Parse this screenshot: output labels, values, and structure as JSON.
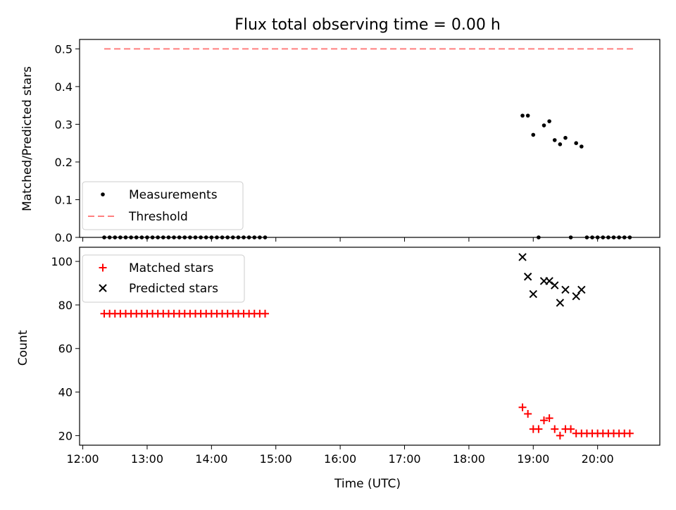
{
  "chart_data": [
    {
      "type": "scatter",
      "title": "Flux total observing time = 0.00 h",
      "xlabel": "",
      "ylabel": "Matched/Predicted stars",
      "ylim": [
        0,
        0.525
      ],
      "yticks": [
        "0.0",
        "0.1",
        "0.2",
        "0.3",
        "0.4",
        "0.5"
      ],
      "legend": {
        "placement": "lower-left",
        "entries": [
          "Measurements",
          "Threshold"
        ]
      },
      "threshold": {
        "name": "Threshold",
        "value": 0.5,
        "x_start": "12:20",
        "x_end": "20:33",
        "color": "#ff7f7f",
        "style": "dashed"
      },
      "series": [
        {
          "name": "Measurements",
          "color": "#000000",
          "marker": "dot",
          "points": [
            [
              "12:20",
              0
            ],
            [
              "12:25",
              0
            ],
            [
              "12:30",
              0
            ],
            [
              "12:35",
              0
            ],
            [
              "12:40",
              0
            ],
            [
              "12:45",
              0
            ],
            [
              "12:50",
              0
            ],
            [
              "12:55",
              0
            ],
            [
              "13:00",
              0
            ],
            [
              "13:05",
              0
            ],
            [
              "13:10",
              0
            ],
            [
              "13:15",
              0
            ],
            [
              "13:20",
              0
            ],
            [
              "13:25",
              0
            ],
            [
              "13:30",
              0
            ],
            [
              "13:35",
              0
            ],
            [
              "13:40",
              0
            ],
            [
              "13:45",
              0
            ],
            [
              "13:50",
              0
            ],
            [
              "13:55",
              0
            ],
            [
              "14:00",
              0
            ],
            [
              "14:05",
              0
            ],
            [
              "14:10",
              0
            ],
            [
              "14:15",
              0
            ],
            [
              "14:20",
              0
            ],
            [
              "14:25",
              0
            ],
            [
              "14:30",
              0
            ],
            [
              "14:35",
              0
            ],
            [
              "14:40",
              0
            ],
            [
              "14:45",
              0
            ],
            [
              "14:50",
              0
            ],
            [
              "18:50",
              0.323
            ],
            [
              "18:55",
              0.323
            ],
            [
              "19:00",
              0.272
            ],
            [
              "19:05",
              0
            ],
            [
              "19:10",
              0.297
            ],
            [
              "19:15",
              0.308
            ],
            [
              "19:20",
              0.258
            ],
            [
              "19:25",
              0.247
            ],
            [
              "19:30",
              0.264
            ],
            [
              "19:35",
              0
            ],
            [
              "19:40",
              0.25
            ],
            [
              "19:45",
              0.241
            ],
            [
              "19:50",
              0
            ],
            [
              "19:55",
              0
            ],
            [
              "20:00",
              0
            ],
            [
              "20:05",
              0
            ],
            [
              "20:10",
              0
            ],
            [
              "20:15",
              0
            ],
            [
              "20:20",
              0
            ],
            [
              "20:25",
              0
            ],
            [
              "20:30",
              0
            ]
          ]
        }
      ]
    },
    {
      "type": "scatter",
      "title": "",
      "xlabel": "Time (UTC)",
      "ylabel": "Count",
      "ylim": [
        15.6,
        106.5
      ],
      "yticks": [
        "20",
        "40",
        "60",
        "80",
        "100"
      ],
      "xlim": [
        "11:57",
        "20:58"
      ],
      "xticks": [
        "12:00",
        "13:00",
        "14:00",
        "15:00",
        "16:00",
        "17:00",
        "18:00",
        "19:00",
        "20:00"
      ],
      "legend": {
        "placement": "top-left",
        "entries": [
          "Matched stars",
          "Predicted stars"
        ]
      },
      "series": [
        {
          "name": "Matched stars",
          "color": "#ff0000",
          "marker": "plus",
          "points": [
            [
              "12:20",
              76
            ],
            [
              "12:25",
              76
            ],
            [
              "12:30",
              76
            ],
            [
              "12:35",
              76
            ],
            [
              "12:40",
              76
            ],
            [
              "12:45",
              76
            ],
            [
              "12:50",
              76
            ],
            [
              "12:55",
              76
            ],
            [
              "13:00",
              76
            ],
            [
              "13:05",
              76
            ],
            [
              "13:10",
              76
            ],
            [
              "13:15",
              76
            ],
            [
              "13:20",
              76
            ],
            [
              "13:25",
              76
            ],
            [
              "13:30",
              76
            ],
            [
              "13:35",
              76
            ],
            [
              "13:40",
              76
            ],
            [
              "13:45",
              76
            ],
            [
              "13:50",
              76
            ],
            [
              "13:55",
              76
            ],
            [
              "14:00",
              76
            ],
            [
              "14:05",
              76
            ],
            [
              "14:10",
              76
            ],
            [
              "14:15",
              76
            ],
            [
              "14:20",
              76
            ],
            [
              "14:25",
              76
            ],
            [
              "14:30",
              76
            ],
            [
              "14:35",
              76
            ],
            [
              "14:40",
              76
            ],
            [
              "14:45",
              76
            ],
            [
              "14:50",
              76
            ],
            [
              "18:50",
              33
            ],
            [
              "18:55",
              30
            ],
            [
              "19:00",
              23
            ],
            [
              "19:05",
              23
            ],
            [
              "19:10",
              27
            ],
            [
              "19:15",
              28
            ],
            [
              "19:20",
              23
            ],
            [
              "19:25",
              20
            ],
            [
              "19:30",
              23
            ],
            [
              "19:35",
              23
            ],
            [
              "19:40",
              21
            ],
            [
              "19:45",
              21
            ],
            [
              "19:50",
              21
            ],
            [
              "19:55",
              21
            ],
            [
              "20:00",
              21
            ],
            [
              "20:05",
              21
            ],
            [
              "20:10",
              21
            ],
            [
              "20:15",
              21
            ],
            [
              "20:20",
              21
            ],
            [
              "20:25",
              21
            ],
            [
              "20:30",
              21
            ]
          ]
        },
        {
          "name": "Predicted stars",
          "color": "#000000",
          "marker": "x",
          "points": [
            [
              "18:50",
              102
            ],
            [
              "18:55",
              93
            ],
            [
              "19:00",
              85
            ],
            [
              "19:10",
              91
            ],
            [
              "19:15",
              91
            ],
            [
              "19:20",
              89
            ],
            [
              "19:25",
              81
            ],
            [
              "19:30",
              87
            ],
            [
              "19:40",
              84
            ],
            [
              "19:45",
              87
            ]
          ]
        }
      ]
    }
  ]
}
